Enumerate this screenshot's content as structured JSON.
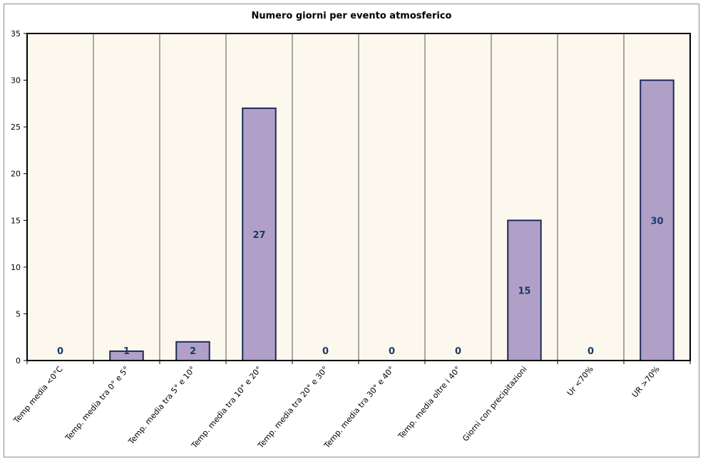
{
  "chart_data": {
    "type": "bar",
    "title": "Numero giorni per evento atmosferico",
    "xlabel": "",
    "ylabel": "",
    "ylim": [
      0,
      35
    ],
    "yticks": [
      0,
      5,
      10,
      15,
      20,
      25,
      30,
      35
    ],
    "grid": "vertical",
    "categories": [
      "Temp media <0°C",
      "Temp. media tra 0° e 5°",
      "Temp. media tra 5° e 10°",
      "Temp. media tra 10° e 20°",
      "Temp. media tra 20° e 30°",
      "Temp. media tra 30° e 40°",
      "Temp. media oltre i 40°",
      "Giorni con precipitazioni",
      "Ur <70%",
      "UR >70%"
    ],
    "values": [
      0,
      1,
      2,
      27,
      0,
      0,
      0,
      15,
      0,
      30
    ],
    "colors": {
      "bar_fill": "#b0a0c8",
      "bar_stroke": "#1a2a5a",
      "plot_bg": "#fdf8ee",
      "label": "#1a3a6a"
    }
  }
}
